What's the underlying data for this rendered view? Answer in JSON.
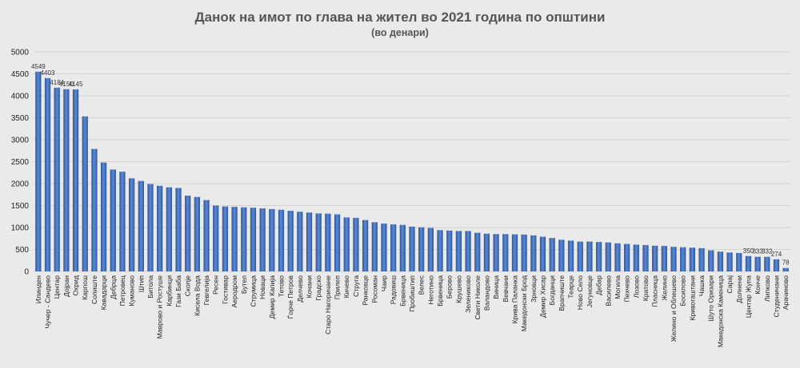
{
  "chart_data": {
    "type": "bar",
    "title": "Данок на имот по глава на жител во 2021 година по општини",
    "subtitle": "(во денари)",
    "xlabel": "",
    "ylabel": "",
    "ylim": [
      0,
      5000
    ],
    "yticks": [
      "0",
      "500",
      "1000",
      "1500",
      "2000",
      "2500",
      "3000",
      "3500",
      "4000",
      "4500",
      "5000"
    ],
    "grid": true,
    "bar_color": "#4472c4",
    "categories": [
      "Илинден",
      "Чучер - Сандево",
      "Центар",
      "Дојран",
      "Охрид",
      "Карпош",
      "Сопиште",
      "Кавадарци",
      "Дебрца",
      "Петровец",
      "Куманово",
      "Штип",
      "Битола",
      "Маврово и Ростуше",
      "Карбинци",
      "Гази Баба",
      "Скопје",
      "Кисела Вода",
      "Гевгелија",
      "Ресен",
      "Гостивар",
      "Аеродром",
      "Бутел",
      "Струмица",
      "Новаци",
      "Демир Капија",
      "Тетово",
      "Ѓорче Петров",
      "Делчево",
      "Кочани",
      "Градско",
      "Старо Нагоричане",
      "Прилеп",
      "Кичево",
      "Струга",
      "Ранковце",
      "Росоман",
      "Чаир",
      "Радовиш",
      "Брвеница",
      "Пробиштип",
      "Велес",
      "Неготино",
      "Брвеница",
      "Берово",
      "Крушево",
      "Зелениково",
      "Свети Николе",
      "Валандово",
      "Виница",
      "Вевчани",
      "Крива Паланка",
      "Македонски Брод",
      "Зрновци",
      "Демир Хисар",
      "Богданци",
      "Врапчиште",
      "Теарце",
      "Ново Село",
      "Јегуновце",
      "Дебар",
      "Василево",
      "Могила",
      "Пехчево",
      "Лозово",
      "Кратово",
      "Пласница",
      "Желино",
      "Желино и Облешево",
      "Босилово",
      "Кривогаштани",
      "Чашка",
      "Шуто Оризари",
      "Македонска Каменица",
      "Сарај",
      "Долнени",
      "Центар Жупа",
      "Конче",
      "Липково",
      "Студеничани",
      "Арачиново"
    ],
    "values": [
      4549,
      4403,
      4184,
      4150,
      4145,
      3530,
      2790,
      2480,
      2320,
      2270,
      2120,
      2060,
      1990,
      1950,
      1915,
      1900,
      1725,
      1695,
      1625,
      1500,
      1480,
      1470,
      1460,
      1450,
      1435,
      1420,
      1405,
      1380,
      1360,
      1340,
      1320,
      1315,
      1300,
      1230,
      1220,
      1170,
      1120,
      1090,
      1070,
      1060,
      1020,
      1005,
      990,
      940,
      930,
      920,
      920,
      880,
      860,
      850,
      850,
      845,
      840,
      820,
      790,
      760,
      720,
      700,
      680,
      680,
      670,
      660,
      640,
      625,
      610,
      600,
      585,
      580,
      560,
      550,
      540,
      530,
      480,
      450,
      430,
      420,
      350,
      333,
      332,
      274,
      78
    ],
    "data_labels": [
      {
        "index": 0,
        "text": "4549"
      },
      {
        "index": 1,
        "text": "4403"
      },
      {
        "index": 2,
        "text": "4184"
      },
      {
        "index": 3,
        "text": "4150"
      },
      {
        "index": 4,
        "text": "4145"
      },
      {
        "index": 76,
        "text": "350"
      },
      {
        "index": 77,
        "text": "333"
      },
      {
        "index": 78,
        "text": "332"
      },
      {
        "index": 79,
        "text": "274"
      },
      {
        "index": 80,
        "text": "78"
      }
    ]
  }
}
